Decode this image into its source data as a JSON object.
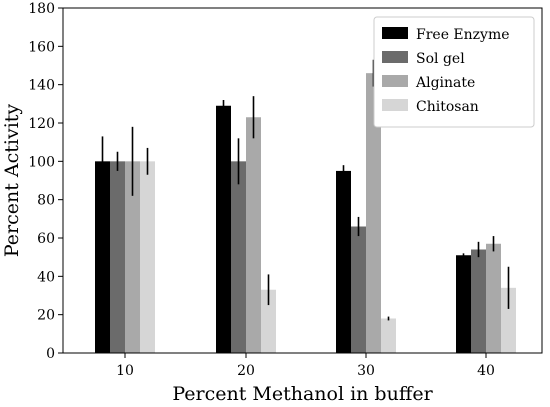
{
  "chart_data": {
    "type": "bar",
    "title": "",
    "xlabel": "Percent Methanol in buffer",
    "ylabel": "Percent Activity",
    "categories": [
      "10",
      "20",
      "30",
      "40"
    ],
    "ylim": [
      0,
      180
    ],
    "yticks": [
      0,
      20,
      40,
      60,
      80,
      100,
      120,
      140,
      160,
      180
    ],
    "grid": false,
    "legend_position": "top-right",
    "series": [
      {
        "name": "Free Enzyme",
        "color": "#000000",
        "values": [
          100,
          129,
          95,
          51
        ],
        "errors": [
          13,
          3,
          3,
          1
        ]
      },
      {
        "name": "Sol gel",
        "color": "#6b6b6b",
        "values": [
          100,
          100,
          66,
          54
        ],
        "errors": [
          5,
          12,
          5,
          4
        ]
      },
      {
        "name": "Alginate",
        "color": "#a9a9a9",
        "values": [
          100,
          123,
          146,
          57
        ],
        "errors": [
          18,
          11,
          7,
          4
        ]
      },
      {
        "name": "Chitosan",
        "color": "#d6d6d6",
        "values": [
          100,
          33,
          18,
          34
        ],
        "errors": [
          7,
          8,
          1,
          11
        ]
      }
    ]
  }
}
